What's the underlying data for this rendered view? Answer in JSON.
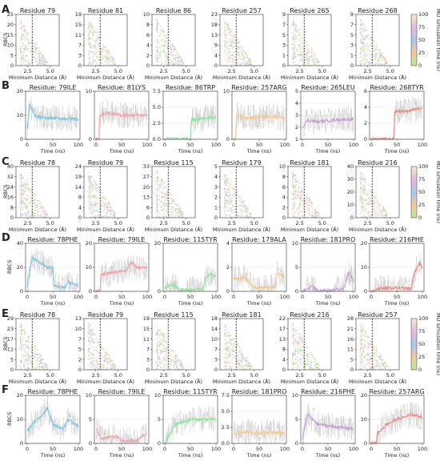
{
  "panel_letters": [
    "A",
    "B",
    "C",
    "D",
    "E",
    "F"
  ],
  "colors": {
    "blue": "#7ec8e3",
    "pink": "#f4a3a8",
    "green": "#8ee89a",
    "orange": "#f7c98f",
    "purple": "#c9a0dc",
    "salmon": "#f08c84",
    "scatter_cmap": [
      "#b8e8a0",
      "#f4c89a",
      "#a8c8f0",
      "#e8b8e0",
      "#f0f0c8"
    ]
  },
  "chart_data": [
    {
      "panel": "A",
      "type": "scatter",
      "xlabel": "Minimum Distance (Å)",
      "ylabel": "RBCS",
      "xticks": [
        "2.5",
        "5.0"
      ],
      "cutoff": 3.0,
      "colorbar": {
        "label": "MD simulation time (ns)",
        "ticks": [
          "0",
          "25",
          "50",
          "75",
          "100"
        ]
      },
      "subplots": [
        {
          "title": "Residue 79",
          "ylim": [
            0,
            25
          ],
          "yticks": [
            "0",
            "5",
            "10",
            "15",
            "20",
            "25"
          ]
        },
        {
          "title": "Residue 81",
          "ylim": [
            0,
            19
          ],
          "yticks": [
            "0",
            "3",
            "7",
            "11",
            "15",
            "19"
          ]
        },
        {
          "title": "Residue 86",
          "ylim": [
            0,
            10
          ],
          "yticks": [
            "0",
            "2",
            "4",
            "6",
            "8",
            "10"
          ]
        },
        {
          "title": "Residue 257",
          "ylim": [
            0,
            23
          ],
          "yticks": [
            "0",
            "4",
            "9",
            "13",
            "18",
            "23"
          ]
        },
        {
          "title": "Residue 265",
          "ylim": [
            0,
            9
          ],
          "yticks": [
            "0",
            "1",
            "3",
            "5",
            "7",
            "9"
          ]
        },
        {
          "title": "Residue 268",
          "ylim": [
            0,
            9
          ],
          "yticks": [
            "0",
            "1",
            "3",
            "5",
            "7",
            "9"
          ]
        }
      ]
    },
    {
      "panel": "B",
      "type": "line",
      "xlabel": "Time (ns)",
      "ylabel": "",
      "xticks": [
        "0",
        "50",
        "100"
      ],
      "subplots": [
        {
          "title": "Residue: 79ILE",
          "color": "blue",
          "ylim": [
            0,
            25
          ],
          "yticks": [
            "0",
            "10",
            "20"
          ],
          "profile": [
            [
              0,
              5
            ],
            [
              5,
              18
            ],
            [
              15,
              12
            ],
            [
              30,
              11
            ],
            [
              50,
              11
            ],
            [
              100,
              10.5
            ]
          ]
        },
        {
          "title": "Residue: 81LYS",
          "color": "pink",
          "ylim": [
            0,
            20
          ],
          "yticks": [
            "0",
            "10"
          ],
          "profile": [
            [
              0,
              0
            ],
            [
              6,
              0
            ],
            [
              7,
              10
            ],
            [
              20,
              11
            ],
            [
              50,
              10
            ],
            [
              100,
              10
            ]
          ]
        },
        {
          "title": "Residue: 86TRP",
          "color": "green",
          "ylim": [
            0,
            7.5
          ],
          "yticks": [
            "0.0",
            "2.5",
            "5.0",
            "7.5"
          ],
          "profile": [
            [
              0,
              0
            ],
            [
              50,
              0
            ],
            [
              52,
              3
            ],
            [
              70,
              3.2
            ],
            [
              100,
              3.5
            ]
          ]
        },
        {
          "title": "Residue: 257ARG",
          "color": "orange",
          "ylim": [
            0,
            20
          ],
          "yticks": [
            "0",
            "10"
          ],
          "profile": [
            [
              0,
              0
            ],
            [
              4,
              0
            ],
            [
              6,
              10
            ],
            [
              30,
              9
            ],
            [
              60,
              9.5
            ],
            [
              100,
              9
            ]
          ]
        },
        {
          "title": "Residue: 265LEU",
          "color": "purple",
          "ylim": [
            0,
            5
          ],
          "yticks": [
            "1",
            "2",
            "3",
            "4",
            "5"
          ],
          "profile": [
            [
              0,
              1.2
            ],
            [
              10,
              2
            ],
            [
              30,
              1.8
            ],
            [
              60,
              2
            ],
            [
              100,
              2.1
            ]
          ]
        },
        {
          "title": "Residue: 268TYR",
          "color": "salmon",
          "ylim": [
            0,
            6
          ],
          "yticks": [
            "0",
            "2",
            "4",
            "6"
          ],
          "profile": [
            [
              0,
              0
            ],
            [
              44,
              0
            ],
            [
              46,
              3.5
            ],
            [
              70,
              3.5
            ],
            [
              100,
              4
            ]
          ]
        }
      ]
    },
    {
      "panel": "C",
      "type": "scatter",
      "xlabel": "Minimum Distance (Å)",
      "ylabel": "RBCS",
      "xticks": [
        "2.5",
        "5.0"
      ],
      "cutoff": 3.0,
      "colorbar": {
        "label": "MD simulation time (ns)",
        "ticks": [
          "0",
          "25",
          "50",
          "75",
          "100"
        ]
      },
      "subplots": [
        {
          "title": "Residue 78",
          "ylim": [
            0,
            40
          ],
          "yticks": [
            "0",
            "8",
            "16",
            "24",
            "32",
            "40"
          ]
        },
        {
          "title": "Residue 79",
          "ylim": [
            0,
            24
          ],
          "yticks": [
            "0",
            "4",
            "8",
            "14",
            "19",
            "24"
          ]
        },
        {
          "title": "Residue 115",
          "ylim": [
            0,
            33
          ],
          "yticks": [
            "0",
            "6",
            "13",
            "20",
            "27",
            "33"
          ]
        },
        {
          "title": "Residue 179",
          "ylim": [
            0,
            5
          ],
          "yticks": [
            "0",
            "1",
            "2",
            "3",
            "4",
            "5"
          ]
        },
        {
          "title": "Residue 181",
          "ylim": [
            0,
            10
          ],
          "yticks": [
            "0",
            "2",
            "4",
            "6",
            "8",
            "10"
          ]
        },
        {
          "title": "Residue 216",
          "ylim": [
            0,
            40
          ],
          "yticks": [
            "0",
            "10",
            "20",
            "30",
            "40"
          ]
        }
      ]
    },
    {
      "panel": "D",
      "type": "line",
      "xlabel": "Time (ns)",
      "ylabel": "RBCS",
      "xticks": [
        "0",
        "50",
        "100"
      ],
      "subplots": [
        {
          "title": "Residue: 78PHE",
          "color": "blue",
          "ylim": [
            0,
            40
          ],
          "yticks": [
            "0",
            "20",
            "40"
          ],
          "profile": [
            [
              0,
              5
            ],
            [
              10,
              28
            ],
            [
              40,
              20
            ],
            [
              50,
              20
            ],
            [
              52,
              5
            ],
            [
              75,
              3
            ],
            [
              80,
              8
            ],
            [
              100,
              5
            ]
          ]
        },
        {
          "title": "Residue: 79ILE",
          "color": "pink",
          "ylim": [
            0,
            20
          ],
          "yticks": [
            "0",
            "10",
            "20"
          ],
          "profile": [
            [
              0,
              0
            ],
            [
              8,
              0
            ],
            [
              10,
              7
            ],
            [
              40,
              8
            ],
            [
              60,
              9
            ],
            [
              70,
              12
            ],
            [
              80,
              10
            ],
            [
              100,
              10
            ]
          ]
        },
        {
          "title": "Residue: 115TYR",
          "color": "green",
          "ylim": [
            0,
            40
          ],
          "yticks": [
            "0",
            "20"
          ],
          "profile": [
            [
              0,
              3
            ],
            [
              15,
              6
            ],
            [
              30,
              1
            ],
            [
              75,
              2
            ],
            [
              80,
              10
            ],
            [
              90,
              15
            ],
            [
              100,
              12
            ]
          ]
        },
        {
          "title": "Residue: 179ALA",
          "color": "orange",
          "ylim": [
            0,
            4
          ],
          "yticks": [
            "0",
            "2",
            "4"
          ],
          "profile": [
            [
              0,
              1
            ],
            [
              20,
              1.2
            ],
            [
              40,
              0.3
            ],
            [
              80,
              0.3
            ],
            [
              85,
              1.5
            ],
            [
              100,
              1.2
            ]
          ]
        },
        {
          "title": "Residue: 181PRO",
          "color": "purple",
          "ylim": [
            0,
            10
          ],
          "yticks": [
            "0",
            "5",
            "10"
          ],
          "profile": [
            [
              0,
              0
            ],
            [
              20,
              1
            ],
            [
              30,
              0
            ],
            [
              80,
              0.5
            ],
            [
              90,
              4
            ],
            [
              100,
              2
            ]
          ]
        },
        {
          "title": "Residue: 216PHE",
          "color": "salmon",
          "ylim": [
            0,
            20
          ],
          "yticks": [
            "0",
            "10",
            "20"
          ],
          "profile": [
            [
              0,
              0
            ],
            [
              12,
              1
            ],
            [
              50,
              1.5
            ],
            [
              78,
              1
            ],
            [
              85,
              8
            ],
            [
              95,
              12
            ],
            [
              100,
              10
            ]
          ]
        }
      ]
    },
    {
      "panel": "E",
      "type": "scatter",
      "xlabel": "Minimum Distance (Å)",
      "ylabel": "RBCS",
      "xticks": [
        "2.5",
        "5.0"
      ],
      "cutoff": 3.0,
      "colorbar": {
        "label": "MD simulation time (ns)",
        "ticks": [
          "0",
          "25",
          "50",
          "75",
          "100"
        ]
      },
      "subplots": [
        {
          "title": "Residue 78",
          "ylim": [
            0,
            29
          ],
          "yticks": [
            "0",
            "5",
            "11",
            "17",
            "23",
            "29"
          ]
        },
        {
          "title": "Residue 79",
          "ylim": [
            0,
            13
          ],
          "yticks": [
            "0",
            "2",
            "5",
            "7",
            "10",
            "13"
          ]
        },
        {
          "title": "Residue 115",
          "ylim": [
            0,
            19
          ],
          "yticks": [
            "0",
            "3",
            "7",
            "11",
            "15",
            "19"
          ]
        },
        {
          "title": "Residue 181",
          "ylim": [
            0,
            18
          ],
          "yticks": [
            "0",
            "3",
            "7",
            "10",
            "14",
            "18"
          ]
        },
        {
          "title": "Residue 216",
          "ylim": [
            0,
            22
          ],
          "yticks": [
            "0",
            "4",
            "8",
            "13",
            "17",
            "22"
          ]
        },
        {
          "title": "Residue 257",
          "ylim": [
            0,
            28
          ],
          "yticks": [
            "0",
            "5",
            "11",
            "16",
            "21",
            "28"
          ]
        }
      ]
    },
    {
      "panel": "F",
      "type": "line",
      "xlabel": "Time (ns)",
      "ylabel": "RBCS",
      "xticks": [
        "0",
        "50",
        "100"
      ],
      "subplots": [
        {
          "title": "Residue: 78PHE",
          "color": "blue",
          "ylim": [
            0,
            20
          ],
          "yticks": [
            "0",
            "10",
            "20"
          ],
          "profile": [
            [
              0,
              5
            ],
            [
              10,
              8
            ],
            [
              30,
              12
            ],
            [
              40,
              15
            ],
            [
              50,
              8
            ],
            [
              70,
              6
            ],
            [
              80,
              10
            ],
            [
              100,
              7
            ]
          ]
        },
        {
          "title": "Residue: 79ILE",
          "color": "pink",
          "ylim": [
            0,
            10
          ],
          "yticks": [
            "0",
            "5",
            "10"
          ],
          "profile": [
            [
              0,
              3
            ],
            [
              10,
              1
            ],
            [
              40,
              1.5
            ],
            [
              50,
              0.5
            ],
            [
              80,
              0.5
            ],
            [
              90,
              1.5
            ],
            [
              100,
              2
            ]
          ]
        },
        {
          "title": "Residue: 115TYR",
          "color": "green",
          "ylim": [
            0,
            10
          ],
          "yticks": [
            "0",
            "5",
            "10"
          ],
          "profile": [
            [
              0,
              0
            ],
            [
              5,
              1
            ],
            [
              20,
              4
            ],
            [
              50,
              5
            ],
            [
              80,
              5
            ],
            [
              100,
              5
            ]
          ]
        },
        {
          "title": "Residue: 181PRO",
          "color": "orange",
          "ylim": [
            0,
            7.5
          ],
          "yticks": [
            "0.0",
            "2.5",
            "5.0",
            "7.5"
          ],
          "profile": [
            [
              0,
              1.5
            ],
            [
              20,
              1.8
            ],
            [
              50,
              1.6
            ],
            [
              80,
              1.8
            ],
            [
              100,
              1.5
            ]
          ]
        },
        {
          "title": "Residue: 216PHE",
          "color": "purple",
          "ylim": [
            0,
            10
          ],
          "yticks": [
            "0",
            "5",
            "10"
          ],
          "profile": [
            [
              0,
              1
            ],
            [
              10,
              6
            ],
            [
              30,
              4
            ],
            [
              60,
              3.5
            ],
            [
              100,
              3
            ]
          ]
        },
        {
          "title": "Residue: 257ARG",
          "color": "salmon",
          "ylim": [
            0,
            20
          ],
          "yticks": [
            "0",
            "10",
            "20"
          ],
          "profile": [
            [
              0,
              0
            ],
            [
              10,
              0
            ],
            [
              12,
              4
            ],
            [
              30,
              8
            ],
            [
              50,
              10
            ],
            [
              80,
              12
            ],
            [
              100,
              11
            ]
          ]
        }
      ]
    }
  ]
}
